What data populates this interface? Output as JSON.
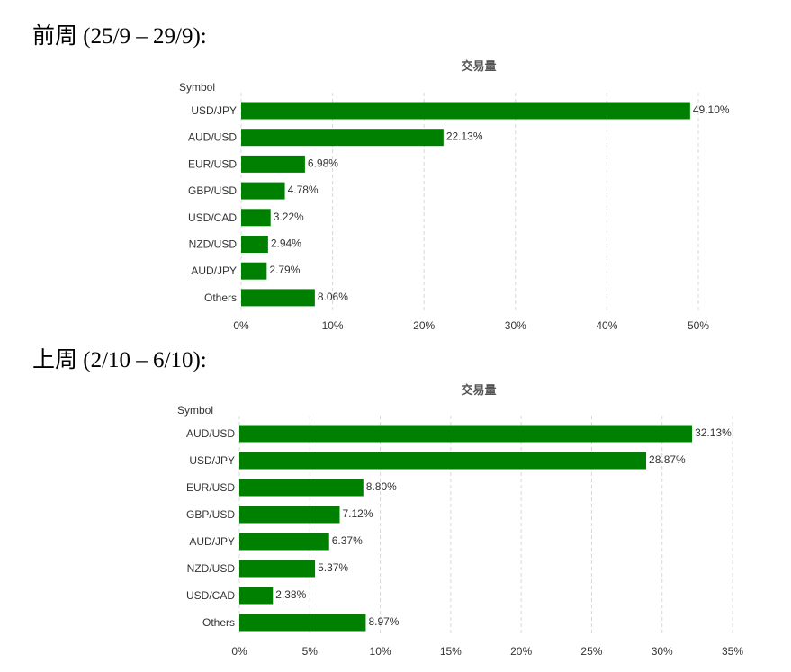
{
  "sections": [
    {
      "heading": "前周 (25/9 – 29/9):",
      "chart_data": {
        "type": "bar",
        "orientation": "horizontal",
        "title": "交易量",
        "ylabel": "Symbol",
        "categories": [
          "USD/JPY",
          "AUD/USD",
          "EUR/USD",
          "GBP/USD",
          "USD/CAD",
          "NZD/USD",
          "AUD/JPY",
          "Others"
        ],
        "values": [
          49.1,
          22.13,
          6.98,
          4.78,
          3.22,
          2.94,
          2.79,
          8.06
        ],
        "value_labels": [
          "49.10%",
          "22.13%",
          "6.98%",
          "4.78%",
          "3.22%",
          "2.94%",
          "2.79%",
          "8.06%"
        ],
        "xlim": [
          0,
          50
        ],
        "xticks": [
          0,
          10,
          20,
          30,
          40,
          50
        ],
        "xtick_labels": [
          "0%",
          "10%",
          "20%",
          "30%",
          "40%",
          "50%"
        ],
        "grid": true,
        "bar_color": "#008000"
      }
    },
    {
      "heading": "上周 (2/10 – 6/10):",
      "chart_data": {
        "type": "bar",
        "orientation": "horizontal",
        "title": "交易量",
        "ylabel": "Symbol",
        "categories": [
          "AUD/USD",
          "USD/JPY",
          "EUR/USD",
          "GBP/USD",
          "AUD/JPY",
          "NZD/USD",
          "USD/CAD",
          "Others"
        ],
        "values": [
          32.13,
          28.87,
          8.8,
          7.12,
          6.37,
          5.37,
          2.38,
          8.97
        ],
        "value_labels": [
          "32.13%",
          "28.87%",
          "8.80%",
          "7.12%",
          "6.37%",
          "5.37%",
          "2.38%",
          "8.97%"
        ],
        "xlim": [
          0,
          35
        ],
        "xticks": [
          0,
          5,
          10,
          15,
          20,
          25,
          30,
          35
        ],
        "xtick_labels": [
          "0%",
          "5%",
          "10%",
          "15%",
          "20%",
          "25%",
          "30%",
          "35%"
        ],
        "grid": true,
        "bar_color": "#008000"
      }
    }
  ]
}
